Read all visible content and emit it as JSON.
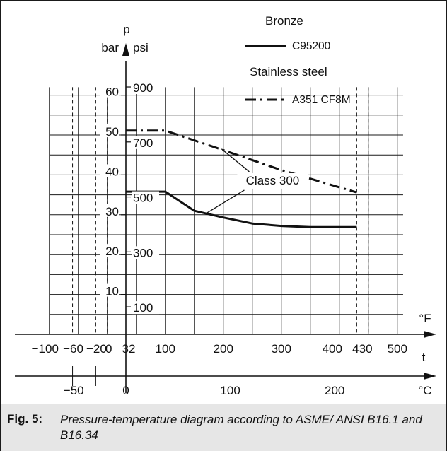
{
  "chart_data": {
    "type": "line",
    "title": "",
    "y_axis_symbol": "p",
    "y_units": [
      "bar",
      "psi"
    ],
    "x_axis_symbol": "t",
    "x_units": [
      "°F",
      "°C"
    ],
    "y_ticks_bar": [
      "10",
      "20",
      "30",
      "40",
      "50",
      "60"
    ],
    "y_ticks_psi": [
      "100",
      "300",
      "500",
      "700",
      "900"
    ],
    "x_ticks_F": [
      "−100",
      "−60",
      "−20",
      "0",
      "32",
      "100",
      "200",
      "300",
      "400",
      "430",
      "500"
    ],
    "x_ticks_C": [
      "−50",
      "0",
      "100",
      "200"
    ],
    "ylim_bar": [
      0,
      62
    ],
    "xlim_F": [
      -100,
      510
    ],
    "legend": {
      "group1_title": "Bronze",
      "group2_title": "Stainless steel"
    },
    "series": [
      {
        "name": "C95200",
        "group": "Bronze",
        "line_style": "solid",
        "x_F": [
          32,
          100,
          150,
          200,
          250,
          300,
          350,
          430
        ],
        "y_bar": [
          35.8,
          35.8,
          31.0,
          29.3,
          27.8,
          27.2,
          26.9,
          26.9
        ]
      },
      {
        "name": "A351 CF8M",
        "group": "Stainless steel",
        "line_style": "dash-dot",
        "x_F": [
          32,
          100,
          200,
          300,
          430
        ],
        "y_bar": [
          51.1,
          51.1,
          46.2,
          41.2,
          35.6
        ]
      }
    ],
    "annotations": [
      {
        "text": "Class 300"
      }
    ],
    "dashed_reference_lines_F": [
      -60,
      -20,
      0,
      430,
      450
    ],
    "colors": {
      "lines": "#111111",
      "grid": "#1a1a1a",
      "caption_bg": "#e6e6e6"
    }
  },
  "caption": {
    "label": "Fig. 5:",
    "text": "Pressure-temperature diagram according to ASME/ ANSI B16.1 and B16.34"
  }
}
